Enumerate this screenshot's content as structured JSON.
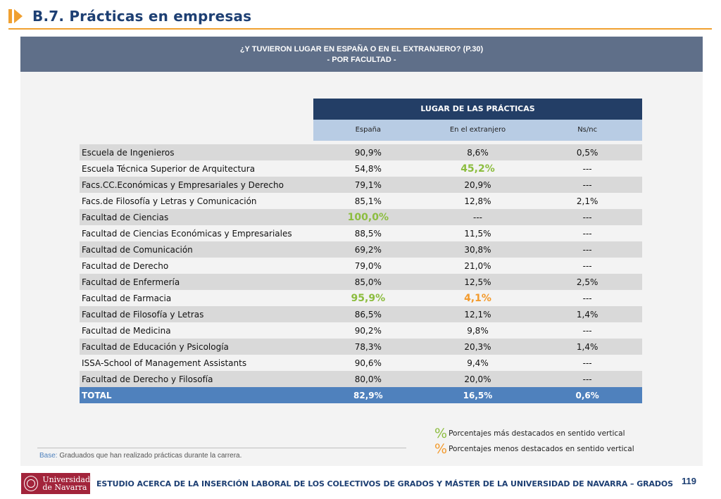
{
  "header": {
    "title": "B.7. Prácticas en empresas"
  },
  "banner": {
    "line1": "¿Y TUVIERON LUGAR EN ESPAÑA O EN EL EXTRANJERO? (P.30)",
    "line2": "- POR FACULTAD -"
  },
  "table": {
    "group_header": "LUGAR DE LAS  PRÁCTICAS",
    "columns": [
      "España",
      "En el extranjero",
      "Ns/nc"
    ],
    "rows": [
      {
        "name": "Escuela de Ingenieros",
        "values": [
          "90,9%",
          "8,6%",
          "0,5%"
        ],
        "styles": [
          "",
          "",
          ""
        ]
      },
      {
        "name": "Escuela Técnica Superior de Arquitectura",
        "values": [
          "54,8%",
          "45,2%",
          "---"
        ],
        "styles": [
          "",
          "hi",
          ""
        ]
      },
      {
        "name": "Facs.CC.Económicas y Empresariales y Derecho",
        "values": [
          "79,1%",
          "20,9%",
          "---"
        ],
        "styles": [
          "",
          "",
          ""
        ]
      },
      {
        "name": "Facs.de Filosofía y Letras y Comunicación",
        "values": [
          "85,1%",
          "12,8%",
          "2,1%"
        ],
        "styles": [
          "",
          "",
          ""
        ]
      },
      {
        "name": "Facultad de Ciencias",
        "values": [
          "100,0%",
          "---",
          "---"
        ],
        "styles": [
          "hi",
          "",
          ""
        ]
      },
      {
        "name": "Facultad de Ciencias Económicas y Empresariales",
        "values": [
          "88,5%",
          "11,5%",
          "---"
        ],
        "styles": [
          "",
          "",
          ""
        ]
      },
      {
        "name": "Facultad de Comunicación",
        "values": [
          "69,2%",
          "30,8%",
          "---"
        ],
        "styles": [
          "",
          "",
          ""
        ]
      },
      {
        "name": "Facultad de Derecho",
        "values": [
          "79,0%",
          "21,0%",
          "---"
        ],
        "styles": [
          "",
          "",
          ""
        ]
      },
      {
        "name": "Facultad de Enfermería",
        "values": [
          "85,0%",
          "12,5%",
          "2,5%"
        ],
        "styles": [
          "",
          "",
          ""
        ]
      },
      {
        "name": "Facultad de Farmacia",
        "values": [
          "95,9%",
          "4,1%",
          "---"
        ],
        "styles": [
          "hi",
          "lo",
          ""
        ]
      },
      {
        "name": "Facultad de Filosofía y Letras",
        "values": [
          "86,5%",
          "12,1%",
          "1,4%"
        ],
        "styles": [
          "",
          "",
          ""
        ]
      },
      {
        "name": "Facultad de Medicina",
        "values": [
          "90,2%",
          "9,8%",
          "---"
        ],
        "styles": [
          "",
          "",
          ""
        ]
      },
      {
        "name": "Facultad de Educación y Psicología",
        "values": [
          "78,3%",
          "20,3%",
          "1,4%"
        ],
        "styles": [
          "",
          "",
          ""
        ]
      },
      {
        "name": "ISSA-School of Management Assistants",
        "values": [
          "90,6%",
          "9,4%",
          "---"
        ],
        "styles": [
          "",
          "",
          ""
        ]
      },
      {
        "name": "Facultad de Derecho y Filosofía",
        "values": [
          "80,0%",
          "20,0%",
          "---"
        ],
        "styles": [
          "",
          "",
          ""
        ]
      }
    ],
    "total": {
      "name": "TOTAL",
      "values": [
        "82,9%",
        "16,5%",
        "0,6%"
      ]
    }
  },
  "legend": {
    "symbol": "%",
    "high": "Porcentajes más destacados en sentido vertical",
    "low": "Porcentajes menos destacados en sentido vertical"
  },
  "base": {
    "label": "Base:",
    "text": " Graduados que han realizado prácticas durante la carrera."
  },
  "footer": {
    "logo_line1": "Universidad",
    "logo_line2": "de Navarra",
    "text": "ESTUDIO ACERCA DE LA INSERCIÓN LABORAL DE LOS COLECTIVOS DE GRADOS Y MÁSTER DE LA UNIVERSIDAD DE NAVARRA – GRADOS",
    "page": "119"
  },
  "colors": {
    "highlight_high": "#8cbd3f",
    "highlight_low": "#f39a2c",
    "header_dark": "#233e66",
    "total_row": "#4f81bd",
    "accent": "#f0a030"
  }
}
